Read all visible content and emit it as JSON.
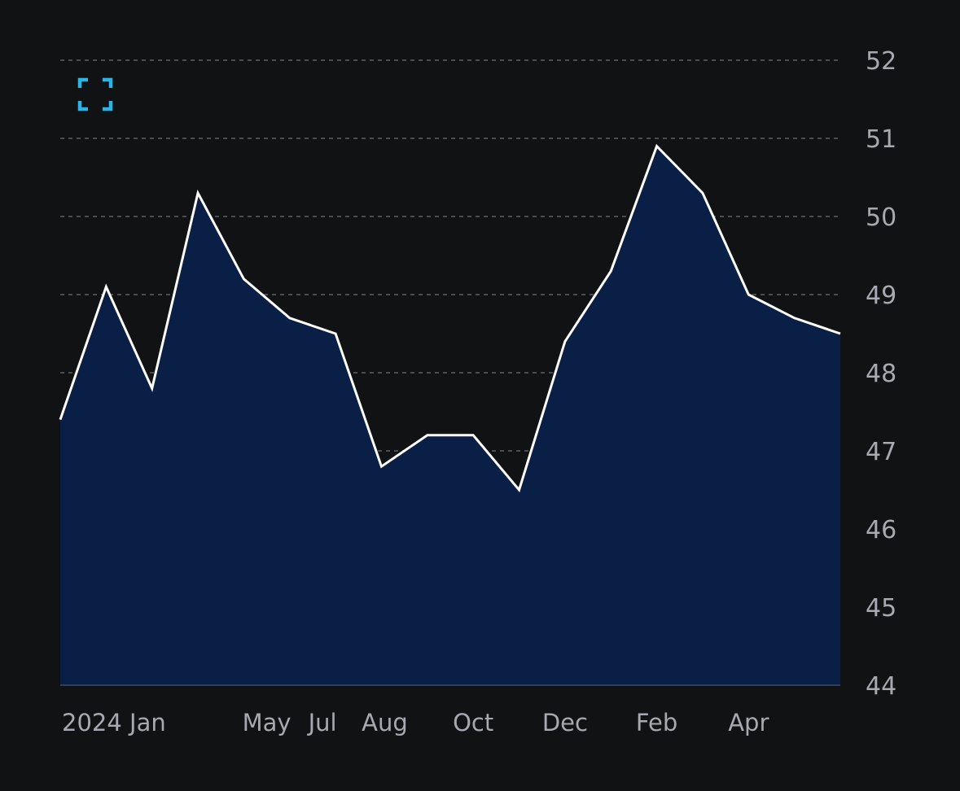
{
  "colors": {
    "background": "#111214",
    "area_fill": "#0a1f45",
    "line": "#ffffff",
    "grid": "#4a4c52",
    "tick_text": "#a7a9b0",
    "accent": "#2ab4e8"
  },
  "toolbar": {
    "expand_icon": "expand-icon"
  },
  "chart_data": {
    "type": "area",
    "title": "",
    "xlabel": "",
    "ylabel": "",
    "ylim": [
      44,
      52
    ],
    "y_ticks": [
      44,
      45,
      46,
      47,
      48,
      49,
      50,
      51,
      52
    ],
    "y_axis_position": "right",
    "grid": true,
    "grid_style": "dashed",
    "legend": "none",
    "x_tick_labels": [
      "2024 Jan",
      "May",
      "Jul",
      "Aug",
      "Oct",
      "Dec",
      "Feb",
      "Apr"
    ],
    "x_tick_index": [
      1,
      4.5,
      6,
      7,
      9,
      11,
      13,
      15
    ],
    "series": [
      {
        "values": [
          47.4,
          49.1,
          47.8,
          50.3,
          49.2,
          48.7,
          48.5,
          46.8,
          47.2,
          47.2,
          46.5,
          48.4,
          49.3,
          50.9,
          50.3,
          49.0,
          48.7,
          48.5
        ]
      }
    ]
  }
}
